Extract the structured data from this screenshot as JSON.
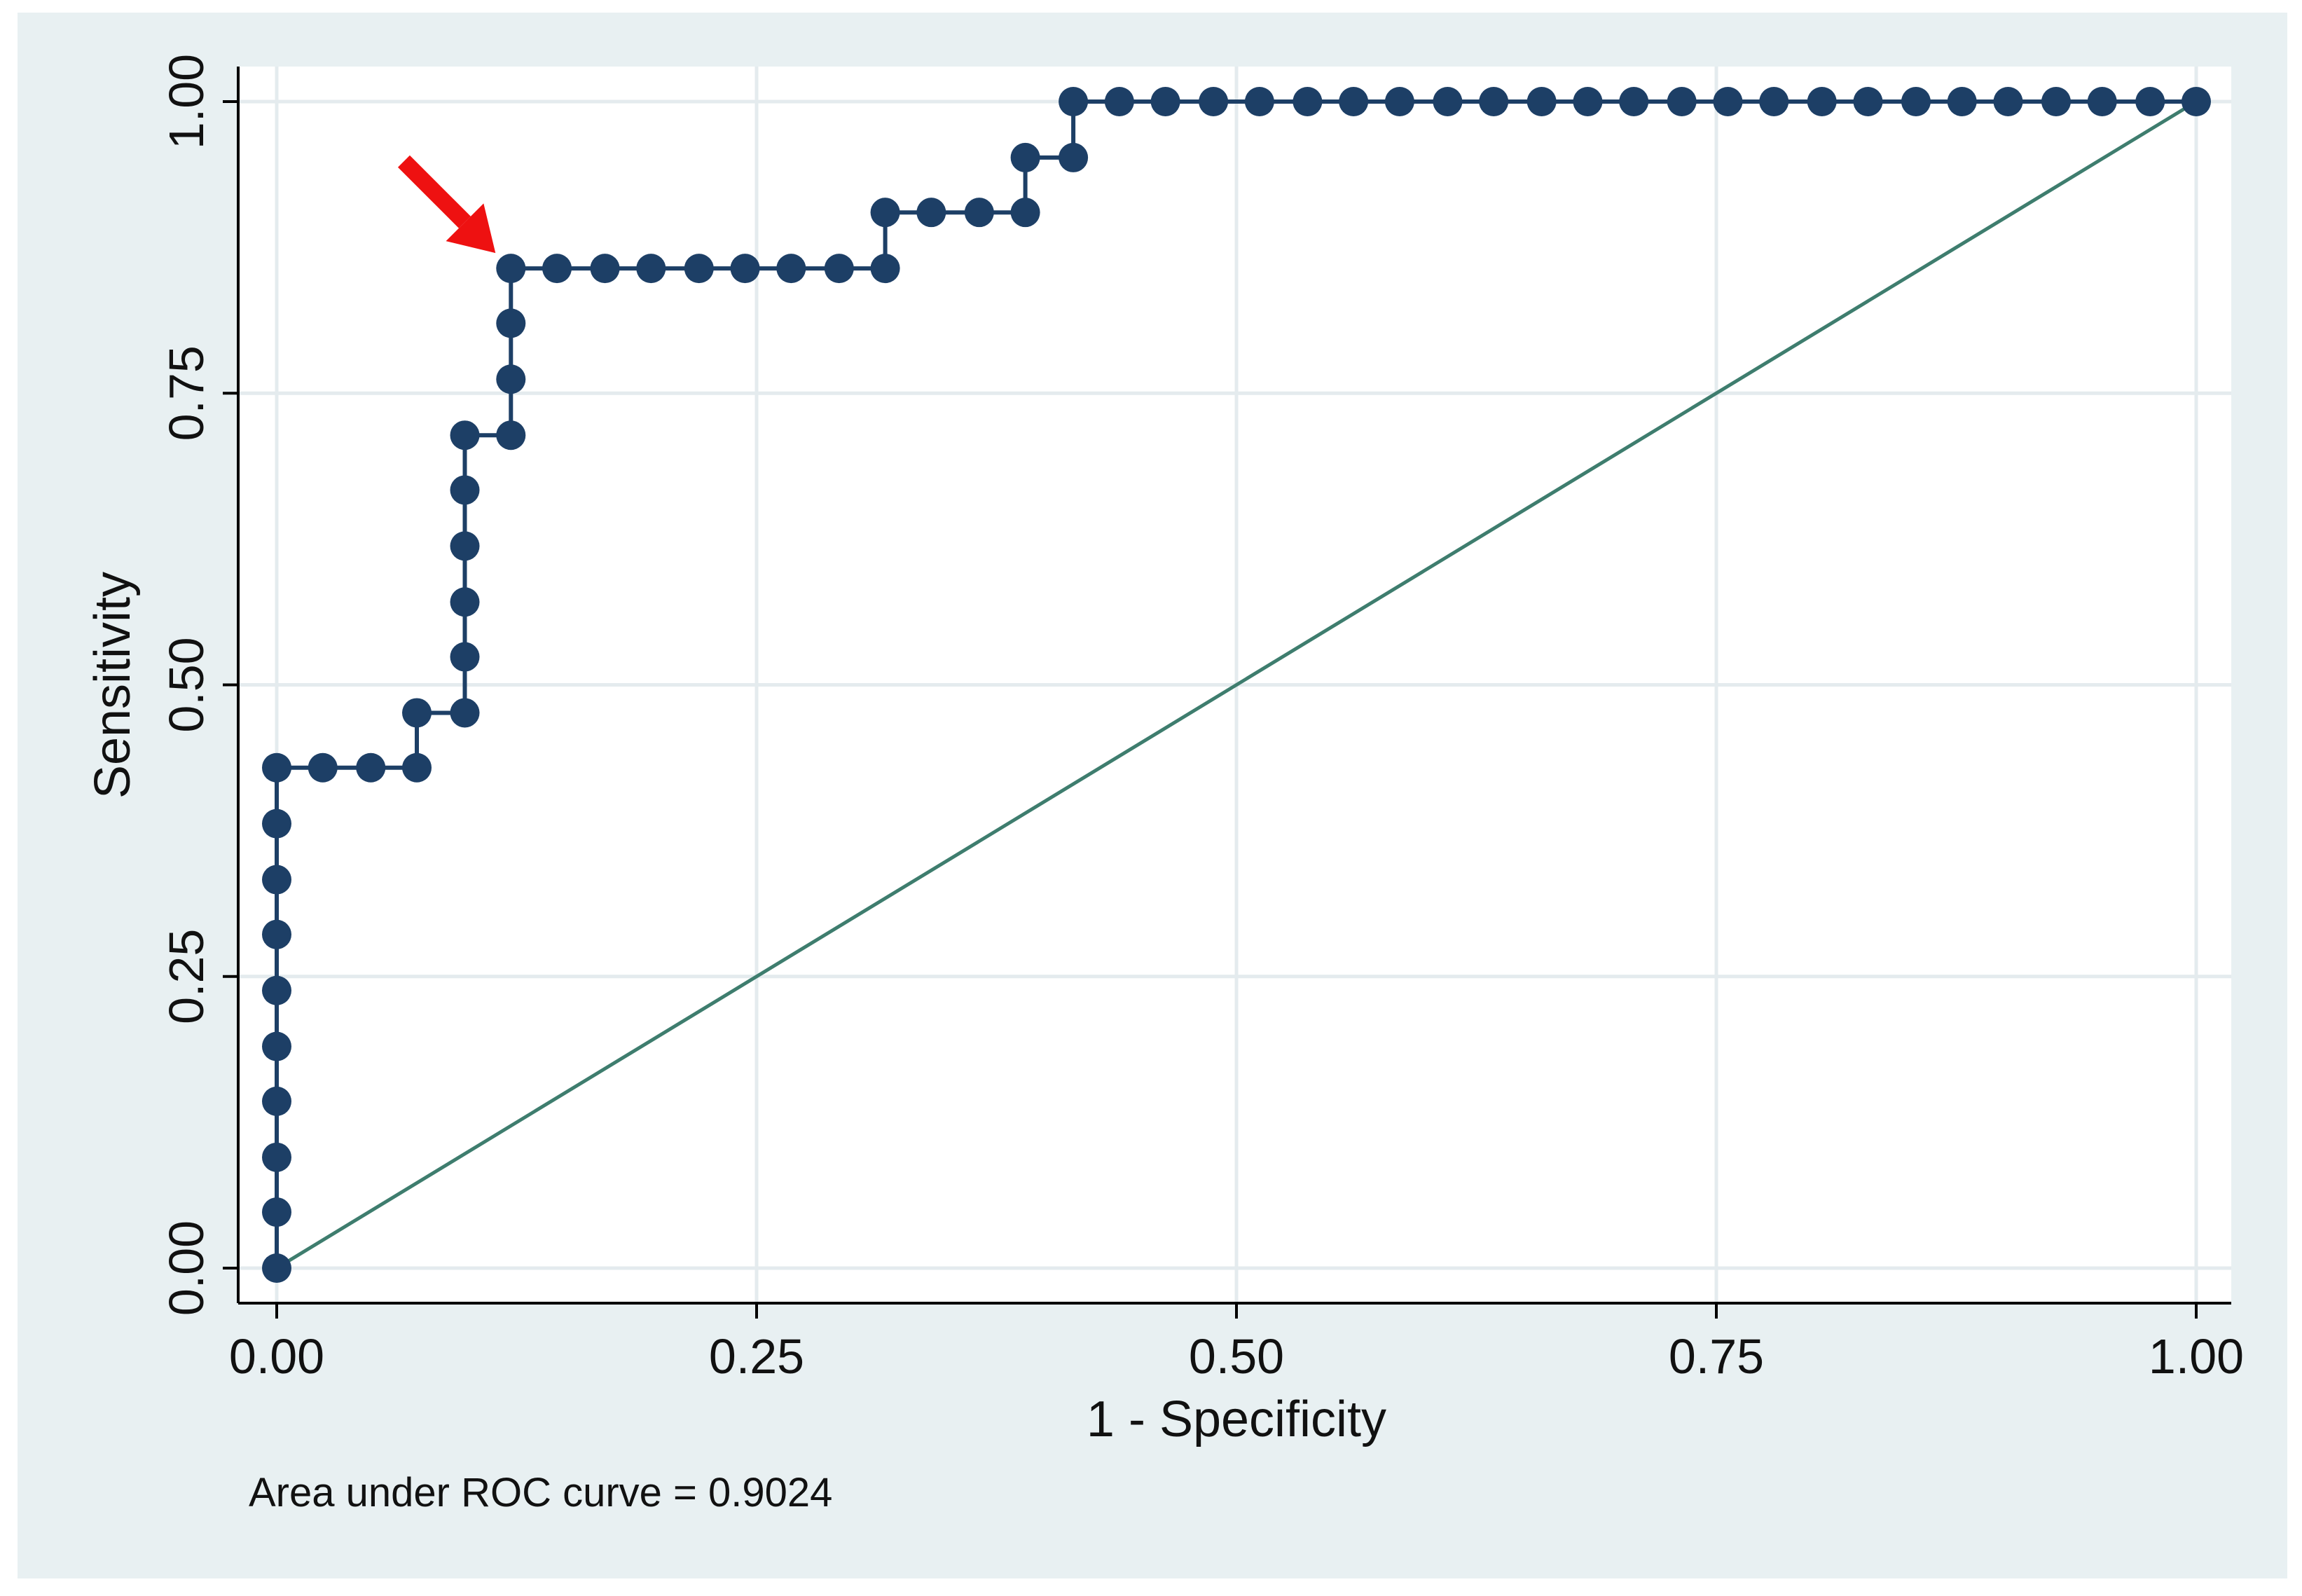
{
  "chart_data": {
    "type": "line",
    "title": "",
    "xlabel": "1 - Specificity",
    "ylabel": "Sensitivity",
    "xlim": [
      0,
      1
    ],
    "ylim": [
      0,
      1
    ],
    "xticks": [
      "0.00",
      "0.25",
      "0.50",
      "0.75",
      "1.00"
    ],
    "yticks": [
      "0.00",
      "0.25",
      "0.50",
      "0.75",
      "1.00"
    ],
    "grid": true,
    "legend": "none",
    "note": "Area under ROC curve = 0.9024",
    "colors": {
      "outer_background": "#e8f0f2",
      "plot_background": "#ffffff",
      "curve": "#1d3f66",
      "reference_line": "#3e7d6e",
      "gridline": "#e4ebee",
      "arrow": "#ee1111"
    },
    "series": [
      {
        "values": [
          [
            0.0,
            0.0
          ],
          [
            0.0,
            0.048
          ],
          [
            0.0,
            0.095
          ],
          [
            0.0,
            0.143
          ],
          [
            0.0,
            0.19
          ],
          [
            0.0,
            0.238
          ],
          [
            0.0,
            0.286
          ],
          [
            0.0,
            0.333
          ],
          [
            0.0,
            0.381
          ],
          [
            0.0,
            0.429
          ],
          [
            0.024,
            0.429
          ],
          [
            0.049,
            0.429
          ],
          [
            0.073,
            0.429
          ],
          [
            0.073,
            0.476
          ],
          [
            0.098,
            0.476
          ],
          [
            0.098,
            0.524
          ],
          [
            0.098,
            0.571
          ],
          [
            0.098,
            0.619
          ],
          [
            0.098,
            0.667
          ],
          [
            0.098,
            0.714
          ],
          [
            0.122,
            0.714
          ],
          [
            0.122,
            0.762
          ],
          [
            0.122,
            0.81
          ],
          [
            0.122,
            0.857
          ],
          [
            0.146,
            0.857
          ],
          [
            0.171,
            0.857
          ],
          [
            0.195,
            0.857
          ],
          [
            0.22,
            0.857
          ],
          [
            0.244,
            0.857
          ],
          [
            0.268,
            0.857
          ],
          [
            0.293,
            0.857
          ],
          [
            0.317,
            0.857
          ],
          [
            0.317,
            0.905
          ],
          [
            0.341,
            0.905
          ],
          [
            0.366,
            0.905
          ],
          [
            0.39,
            0.905
          ],
          [
            0.39,
            0.952
          ],
          [
            0.415,
            0.952
          ],
          [
            0.415,
            1.0
          ],
          [
            0.439,
            1.0
          ],
          [
            0.463,
            1.0
          ],
          [
            0.488,
            1.0
          ],
          [
            0.512,
            1.0
          ],
          [
            0.537,
            1.0
          ],
          [
            0.561,
            1.0
          ],
          [
            0.585,
            1.0
          ],
          [
            0.61,
            1.0
          ],
          [
            0.634,
            1.0
          ],
          [
            0.659,
            1.0
          ],
          [
            0.683,
            1.0
          ],
          [
            0.707,
            1.0
          ],
          [
            0.732,
            1.0
          ],
          [
            0.756,
            1.0
          ],
          [
            0.78,
            1.0
          ],
          [
            0.805,
            1.0
          ],
          [
            0.829,
            1.0
          ],
          [
            0.854,
            1.0
          ],
          [
            0.878,
            1.0
          ],
          [
            0.902,
            1.0
          ],
          [
            0.927,
            1.0
          ],
          [
            0.951,
            1.0
          ],
          [
            0.976,
            1.0
          ],
          [
            1.0,
            1.0
          ]
        ]
      },
      {
        "values": [
          [
            0,
            0
          ],
          [
            1,
            1
          ]
        ]
      }
    ],
    "annotations": [
      {
        "type": "arrow",
        "points_to": [
          0.122,
          0.857
        ]
      }
    ]
  }
}
